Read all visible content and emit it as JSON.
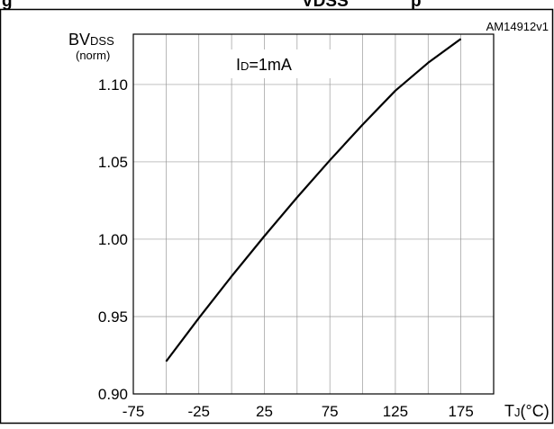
{
  "figure": {
    "caption_prefix": "g",
    "caption_cut": "VDSS",
    "caption_cut_tail": "p",
    "code": "AM14912v1"
  },
  "chart_data": {
    "type": "line",
    "title": "",
    "ylabel_main": "BV",
    "ylabel_sub": "DSS",
    "ylabel_unit": "(norm)",
    "xlabel_main": "T",
    "xlabel_sub": "J",
    "xlabel_unit": "(°C)",
    "annotation_main": "I",
    "annotation_sub": "D",
    "annotation_value": "=1mA",
    "xlim": [
      -75,
      200
    ],
    "ylim": [
      0.9,
      1.1325
    ],
    "x_ticks": [
      -75,
      -50,
      -25,
      0,
      25,
      50,
      75,
      100,
      125,
      150,
      175,
      200
    ],
    "x_tick_labels": [
      "-75",
      "-25",
      "25",
      "75",
      "125",
      "175"
    ],
    "x_tick_label_values": [
      -75,
      -25,
      25,
      75,
      125,
      175
    ],
    "y_ticks": [
      0.9,
      0.95,
      1.0,
      1.05,
      1.1
    ],
    "y_tick_labels": [
      "0.90",
      "0.95",
      "1.00",
      "1.05",
      "1.10"
    ],
    "grid": true,
    "series": [
      {
        "x": [
          -50,
          -25,
          0,
          25,
          50,
          75,
          100,
          125,
          150,
          175
        ],
        "y": [
          0.921,
          0.949,
          0.976,
          1.002,
          1.027,
          1.051,
          1.074,
          1.096,
          1.114,
          1.1295
        ]
      }
    ]
  }
}
